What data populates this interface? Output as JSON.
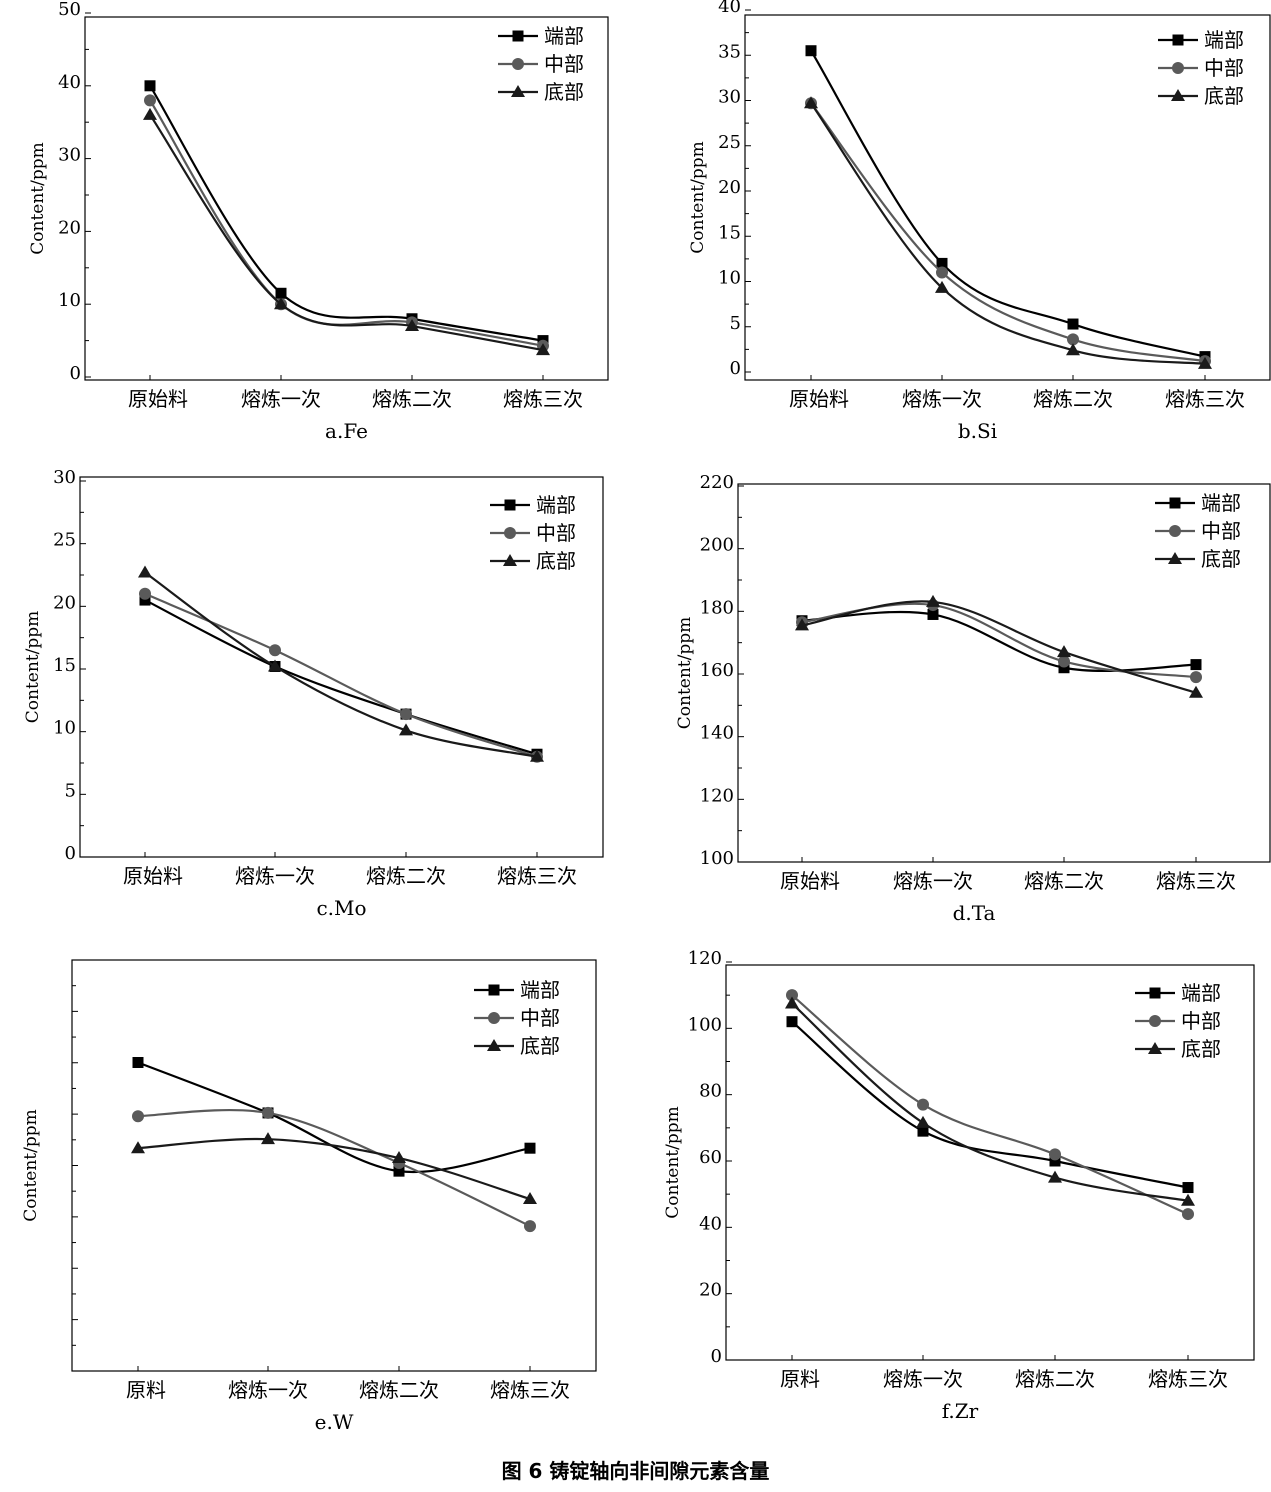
{
  "caption": "图 6   铸锭轴向非间隙元素含量",
  "series_colors": {
    "端部": "#000000",
    "中部": "#5a5a5a",
    "底部": "#1a1a1a"
  },
  "chart_data": [
    {
      "type": "line",
      "subtitle": "a.Fe",
      "ylabel": "Content/ppm",
      "categories": [
        "原始料",
        "熔炼一次",
        "熔炼二次",
        "熔炼三次"
      ],
      "ylim": [
        0,
        50
      ],
      "yticks": [
        0,
        10,
        20,
        30,
        40,
        50
      ],
      "legend": "top-right",
      "grid": false,
      "series": [
        {
          "name": "端部",
          "marker": "square",
          "values": [
            40,
            11.5,
            8,
            5
          ]
        },
        {
          "name": "中部",
          "marker": "circle",
          "values": [
            38,
            10,
            7.5,
            4.3
          ]
        },
        {
          "name": "底部",
          "marker": "triangle",
          "values": [
            36,
            10,
            7,
            3.7
          ]
        }
      ]
    },
    {
      "type": "line",
      "subtitle": "b.Si",
      "ylabel": "Content/ppm",
      "categories": [
        "原始料",
        "熔炼一次",
        "熔炼二次",
        "熔炼三次"
      ],
      "ylim": [
        0,
        40
      ],
      "yticks": [
        0,
        5,
        10,
        15,
        20,
        25,
        30,
        35,
        40
      ],
      "legend": "top-right",
      "grid": false,
      "series": [
        {
          "name": "端部",
          "marker": "square",
          "values": [
            35.5,
            12,
            5.3,
            1.7
          ]
        },
        {
          "name": "中部",
          "marker": "circle",
          "values": [
            29.7,
            11,
            3.6,
            1.2
          ]
        },
        {
          "name": "底部",
          "marker": "triangle",
          "values": [
            29.7,
            9.3,
            2.4,
            0.9
          ]
        }
      ]
    },
    {
      "type": "line",
      "subtitle": "c.Mo",
      "ylabel": "Content/ppm",
      "categories": [
        "原始料",
        "熔炼一次",
        "熔炼二次",
        "熔炼三次"
      ],
      "ylim": [
        0,
        30
      ],
      "yticks": [
        0,
        5,
        10,
        15,
        20,
        25,
        30
      ],
      "legend": "top-right",
      "grid": false,
      "series": [
        {
          "name": "端部",
          "marker": "square",
          "values": [
            20.5,
            15.2,
            11.4,
            8.2
          ]
        },
        {
          "name": "中部",
          "marker": "circle",
          "values": [
            21,
            16.5,
            11.4,
            8
          ]
        },
        {
          "name": "底部",
          "marker": "triangle",
          "values": [
            22.7,
            15.2,
            10.1,
            8
          ]
        }
      ]
    },
    {
      "type": "line",
      "subtitle": "d.Ta",
      "ylabel": "Content/ppm",
      "categories": [
        "原始料",
        "熔炼一次",
        "熔炼二次",
        "熔炼三次"
      ],
      "ylim": [
        100,
        220
      ],
      "yticks": [
        100,
        120,
        140,
        160,
        180,
        200,
        220
      ],
      "legend": "top-right",
      "grid": false,
      "series": [
        {
          "name": "端部",
          "marker": "square",
          "values": [
            177,
            179,
            162,
            163
          ]
        },
        {
          "name": "中部",
          "marker": "circle",
          "values": [
            176.5,
            182,
            164,
            159
          ]
        },
        {
          "name": "底部",
          "marker": "triangle",
          "values": [
            175.5,
            183,
            167,
            154
          ]
        }
      ]
    },
    {
      "type": "line",
      "subtitle": "e.W",
      "ylabel": "Content/ppm",
      "categories": [
        "原料",
        "熔炼一次",
        "熔炼二次",
        "熔炼三次"
      ],
      "ylim": [
        0,
        100
      ],
      "yticks": [],
      "legend": "top-right",
      "grid": false,
      "series": [
        {
          "name": "端部",
          "marker": "square",
          "values": [
            75,
            62.7,
            48.5,
            54.1
          ]
        },
        {
          "name": "中部",
          "marker": "circle",
          "values": [
            61.9,
            62.7,
            50.5,
            35.1
          ]
        },
        {
          "name": "底部",
          "marker": "triangle",
          "values": [
            54.1,
            56.3,
            51.7,
            41.7
          ]
        }
      ]
    },
    {
      "type": "line",
      "subtitle": "f.Zr",
      "ylabel": "Content/ppm",
      "categories": [
        "原料",
        "熔炼一次",
        "熔炼二次",
        "熔炼三次"
      ],
      "ylim": [
        0,
        120
      ],
      "yticks": [
        0,
        20,
        40,
        60,
        80,
        100,
        120
      ],
      "legend": "top-right",
      "grid": false,
      "series": [
        {
          "name": "端部",
          "marker": "square",
          "values": [
            102,
            69,
            60,
            52
          ]
        },
        {
          "name": "中部",
          "marker": "circle",
          "values": [
            110,
            77,
            62,
            44
          ]
        },
        {
          "name": "底部",
          "marker": "triangle",
          "values": [
            107.5,
            71.5,
            55,
            48
          ]
        }
      ]
    }
  ]
}
